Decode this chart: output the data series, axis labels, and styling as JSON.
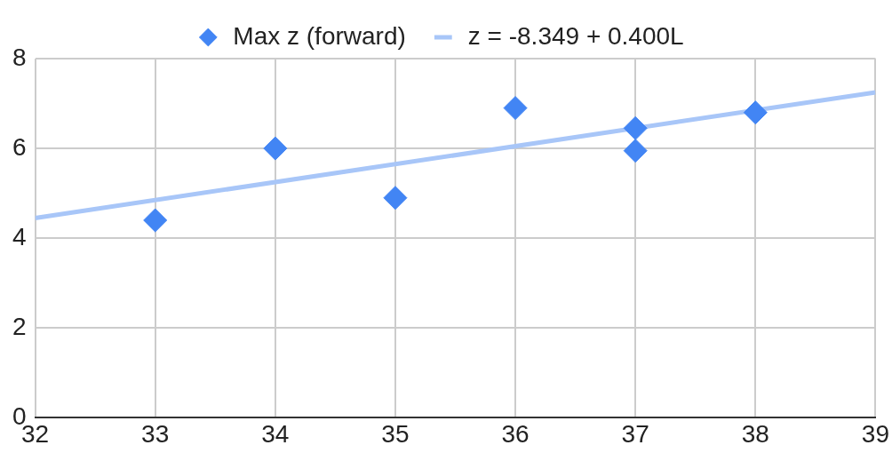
{
  "chart_data": {
    "type": "scatter",
    "legend": "top",
    "grid": true,
    "xlim": [
      32,
      39
    ],
    "xticks": [
      32,
      33,
      34,
      35,
      36,
      37,
      38,
      39
    ],
    "ylim": [
      0,
      8
    ],
    "yticks": [
      0,
      2,
      4,
      6,
      8
    ],
    "series": [
      {
        "name": "Max z (forward)",
        "type": "scatter",
        "marker": "diamond",
        "color": "#4285f4",
        "x": [
          33,
          34,
          35,
          36,
          37,
          37,
          38
        ],
        "values": [
          4.4,
          6.0,
          4.9,
          6.9,
          6.45,
          5.95,
          6.8
        ]
      },
      {
        "name": "z = -8.349 + 0.400L",
        "type": "line",
        "marker": "none",
        "color": "#a8c6f8",
        "x": [
          32,
          39
        ],
        "values": [
          4.45,
          7.25
        ]
      }
    ]
  }
}
